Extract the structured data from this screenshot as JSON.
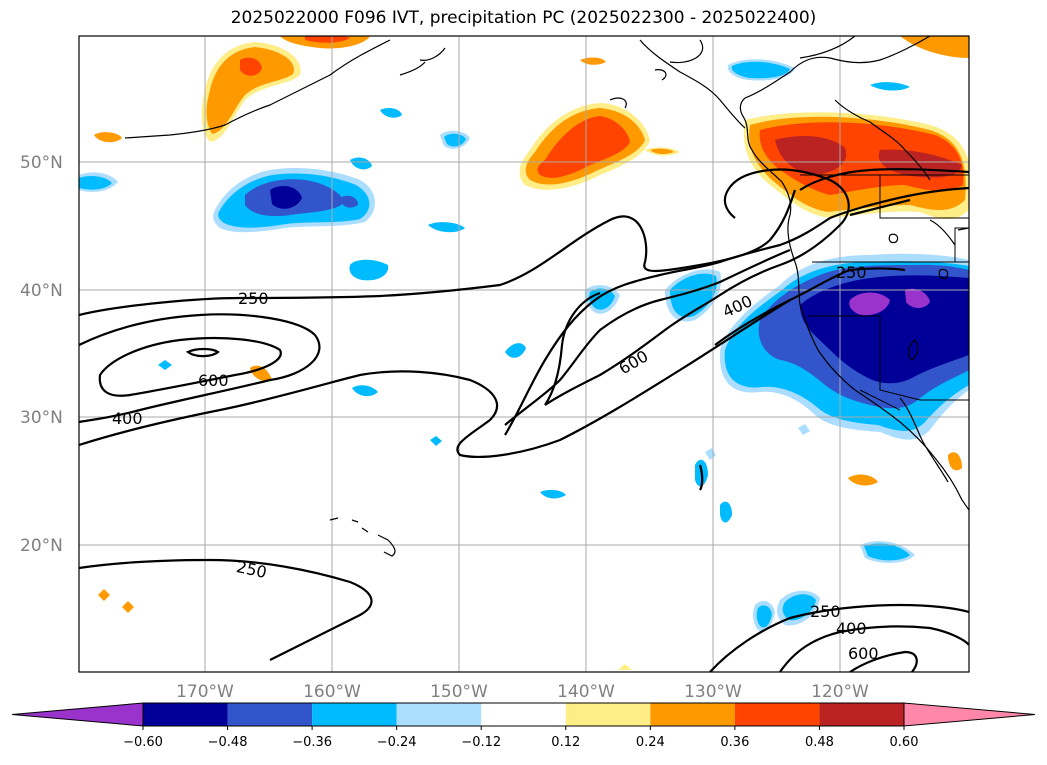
{
  "title": "2025022000 F096 IVT, precipitation PC (2025022300 - 2025022400)",
  "lon_ticks": [
    "170°W",
    "160°W",
    "150°W",
    "140°W",
    "130°W",
    "120°W"
  ],
  "lat_ticks": [
    "50°N",
    "40°N",
    "30°N",
    "20°N"
  ],
  "contour_labels": [
    "250",
    "600",
    "400",
    "250",
    "600",
    "400",
    "250",
    "250",
    "400",
    "600"
  ],
  "colorbar": {
    "ticks": [
      "−0.60",
      "−0.48",
      "−0.36",
      "−0.24",
      "−0.12",
      "0.12",
      "0.24",
      "0.36",
      "0.48",
      "0.60"
    ],
    "colors": [
      "#9933cc",
      "#000099",
      "#3355cc",
      "#00bbff",
      "#aaddff",
      "#ffffff",
      "#ffee88",
      "#ff9900",
      "#ff4400",
      "#bb2222",
      "#ff88aa"
    ]
  }
}
